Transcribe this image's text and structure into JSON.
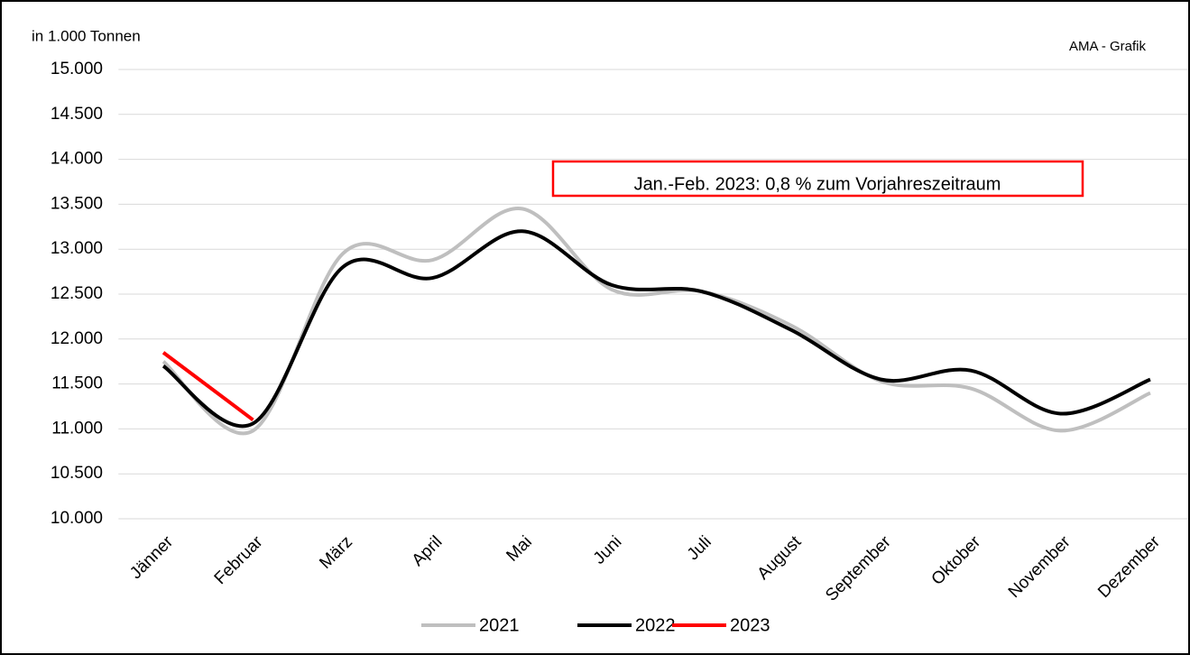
{
  "chart_data": {
    "type": "line",
    "y_label": "in 1.000 Tonnen",
    "source": "AMA - Grafik",
    "annotation": "Jan.-Feb. 2023: 0,8 % zum Vorjahreszeitraum",
    "categories": [
      "Jänner",
      "Februar",
      "März",
      "April",
      "Mai",
      "Juni",
      "Juli",
      "August",
      "September",
      "Oktober",
      "November",
      "Dezember"
    ],
    "series": [
      {
        "name": "2021",
        "color": "#bfbfbf",
        "values": [
          11750,
          10980,
          12950,
          12880,
          13450,
          12550,
          12530,
          12150,
          11530,
          11450,
          10980,
          11400
        ]
      },
      {
        "name": "2022",
        "color": "#000000",
        "values": [
          11700,
          11060,
          12800,
          12680,
          13200,
          12600,
          12530,
          12100,
          11550,
          11650,
          11170,
          11550
        ]
      },
      {
        "name": "2023",
        "color": "#ff0000",
        "values": [
          11850,
          11100,
          null,
          null,
          null,
          null,
          null,
          null,
          null,
          null,
          null,
          null
        ]
      }
    ],
    "ylim": [
      10000,
      15000
    ],
    "yticks": [
      {
        "value": 10000,
        "label": "10.000"
      },
      {
        "value": 10500,
        "label": "10.500"
      },
      {
        "value": 11000,
        "label": "11.000"
      },
      {
        "value": 11500,
        "label": "11.500"
      },
      {
        "value": 12000,
        "label": "12.000"
      },
      {
        "value": 12500,
        "label": "12.500"
      },
      {
        "value": 13000,
        "label": "13.000"
      },
      {
        "value": 13500,
        "label": "13.500"
      },
      {
        "value": 14000,
        "label": "14.000"
      },
      {
        "value": 14500,
        "label": "14.500"
      },
      {
        "value": 15000,
        "label": "15.000"
      }
    ],
    "grid": true
  }
}
